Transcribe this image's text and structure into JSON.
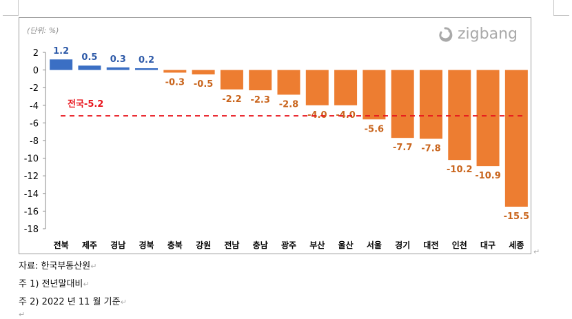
{
  "chart_data": {
    "type": "bar",
    "unit_label": "(단위: %)",
    "categories": [
      "전북",
      "제주",
      "경남",
      "경북",
      "충북",
      "강원",
      "전남",
      "충남",
      "광주",
      "부산",
      "울산",
      "서울",
      "경기",
      "대전",
      "인천",
      "대구",
      "세종"
    ],
    "values": [
      1.2,
      0.5,
      0.3,
      0.2,
      -0.3,
      -0.5,
      -2.2,
      -2.3,
      -2.8,
      -4.0,
      -4.0,
      -5.6,
      -7.7,
      -7.8,
      -10.2,
      -10.9,
      -15.5
    ],
    "value_labels": [
      "1.2",
      "0.5",
      "0.3",
      "0.2",
      "-0.3",
      "-0.5",
      "-2.2",
      "-2.3",
      "-2.8",
      "-4.0",
      "-4.0",
      "-5.6",
      "-7.7",
      "-7.8",
      "-10.2",
      "-10.9",
      "-15.5"
    ],
    "ylim": [
      -18,
      2
    ],
    "yticks": [
      2,
      0,
      -2,
      -4,
      -6,
      -8,
      -10,
      -12,
      -14,
      -16,
      -18
    ],
    "reference_line": {
      "label": "전국-5.2",
      "value": -5.2,
      "color": "#e8141c"
    },
    "colors": {
      "positive": "#3b6fc4",
      "negative": "#ed7d31",
      "positive_label": "#2e5aa8",
      "negative_label": "#c9651d"
    },
    "grid": false,
    "legend": "none",
    "watermark": "zigbang"
  },
  "notes": {
    "source": "자료: 한국부동산원",
    "note1": "주 1) 전년말대비",
    "note2": "주 2) 2022 년 11 월 기준"
  },
  "marks": {
    "paragraph": "↵"
  }
}
